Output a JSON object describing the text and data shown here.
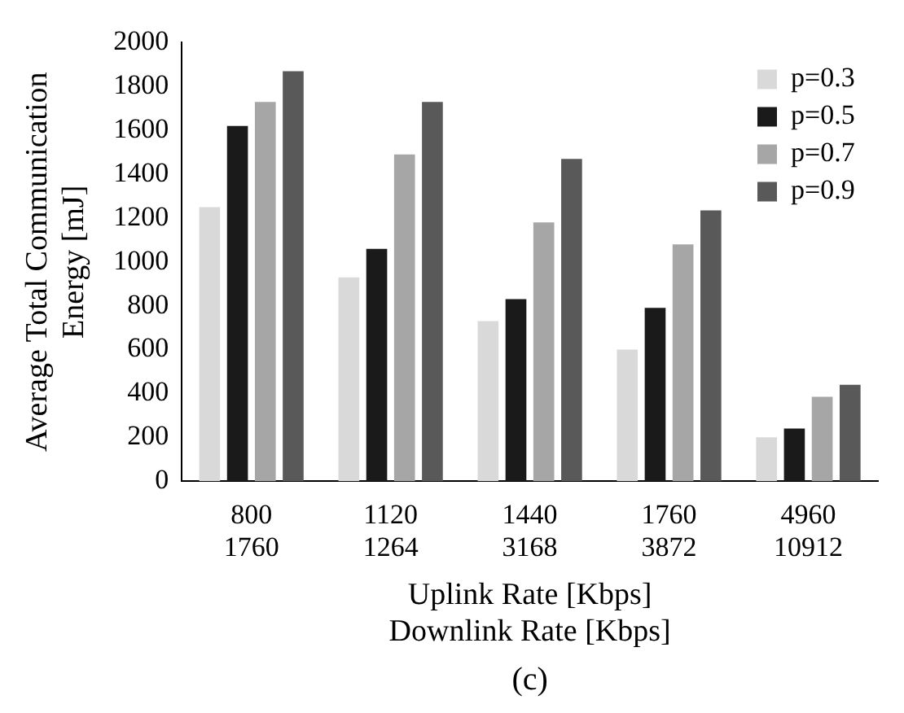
{
  "chart_data": {
    "type": "bar",
    "ylabel": "Average Total Communication\nEnergy [mJ]",
    "xlabel": "Uplink Rate [Kbps]\nDownlink Rate [Kbps]",
    "categories": [
      "800\n1760",
      "1120\n1264",
      "1440\n3168",
      "1760\n3872",
      "4960\n10912"
    ],
    "series": [
      {
        "name": "p=0.3",
        "color": "#d9d9d9",
        "values": [
          1250,
          930,
          730,
          600,
          200
        ]
      },
      {
        "name": "p=0.5",
        "color": "#1a1a1a",
        "values": [
          1620,
          1060,
          830,
          790,
          240
        ]
      },
      {
        "name": "p=0.7",
        "color": "#a6a6a6",
        "values": [
          1730,
          1490,
          1180,
          1080,
          385
        ]
      },
      {
        "name": "p=0.9",
        "color": "#595959",
        "values": [
          1870,
          1730,
          1470,
          1235,
          440
        ]
      }
    ],
    "ylim": [
      0,
      2000
    ],
    "yticks": [
      0,
      200,
      400,
      600,
      800,
      1000,
      1200,
      1400,
      1600,
      1800,
      2000
    ],
    "grid": false,
    "legend": "top right",
    "annotations": [
      "(c)"
    ]
  }
}
